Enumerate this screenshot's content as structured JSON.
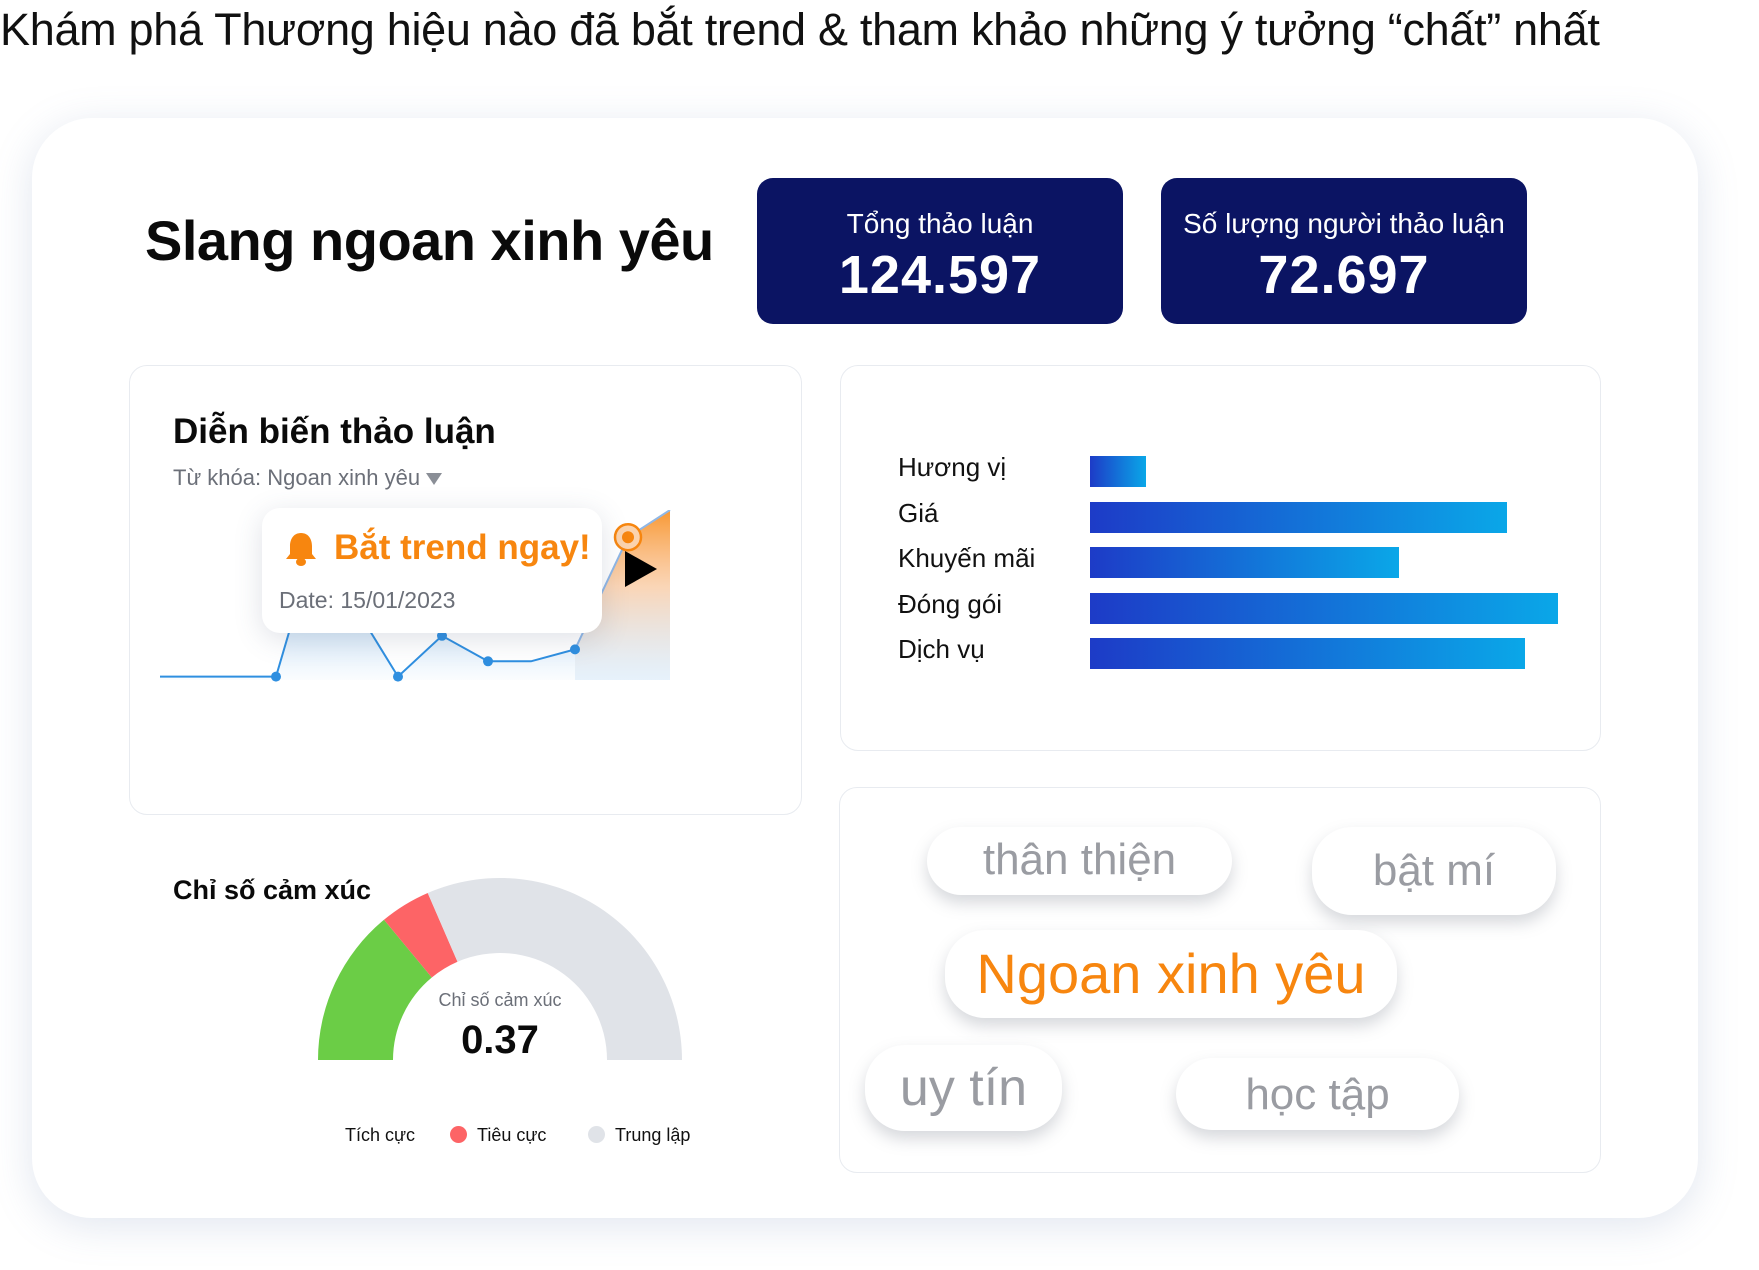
{
  "headline": "Khám phá Thương hiệu nào đã bắt trend & tham khảo những ý tưởng “chất” nhất",
  "slang_title": "Slang ngoan xinh yêu",
  "stats": [
    {
      "label": "Tổng thảo luận",
      "value": "124.597"
    },
    {
      "label": "Số lượng người thảo luận",
      "value": "72.697"
    }
  ],
  "discussion": {
    "title": "Diễn biến thảo luận",
    "keyword_label": "Từ khóa: Ngoan xinh yêu",
    "tooltip_title": "Bắt trend ngay!",
    "tooltip_date": "Date: 15/01/2023",
    "bell_icon": "bell-icon",
    "play_icon": "play-icon",
    "line_color": "#2f8fe0",
    "trend_color": "#f7860f"
  },
  "chart_data": [
    {
      "type": "line",
      "title": "Diễn biến thảo luận",
      "xlabel": "",
      "ylabel": "",
      "ylim": [
        0,
        100
      ],
      "points": [
        {
          "x": 0,
          "y": 2
        },
        {
          "x": 1,
          "y": 2
        },
        {
          "x": 2,
          "y": 60
        },
        {
          "x": 3,
          "y": 48
        },
        {
          "x": 4,
          "y": 2
        },
        {
          "x": 5,
          "y": 26
        },
        {
          "x": 6,
          "y": 11
        },
        {
          "x": 7,
          "y": 11
        },
        {
          "x": 8,
          "y": 18
        },
        {
          "x": 9,
          "y": 84
        },
        {
          "x": 10,
          "y": 100
        }
      ],
      "highlight_x": 9
    },
    {
      "type": "bar",
      "orientation": "horizontal",
      "categories": [
        "Hương vị",
        "Giá",
        "Khuyến mãi",
        "Đóng gói",
        "Dịch vụ"
      ],
      "values": [
        12,
        89,
        66,
        100,
        93
      ],
      "xlim": [
        0,
        100
      ]
    },
    {
      "type": "pie",
      "style": "half-donut",
      "title": "Chỉ số cảm xúc",
      "center_label": "Chỉ số cảm xúc",
      "center_value": "0.37",
      "slices": [
        {
          "name": "Tích cực",
          "value": 28,
          "color": "#6bcd46"
        },
        {
          "name": "Tiêu cực",
          "value": 9,
          "color": "#fd6466"
        },
        {
          "name": "Trung lập",
          "value": 63,
          "color": "#e0e3e8"
        }
      ]
    }
  ],
  "legend": [
    {
      "label": "Tích cực",
      "color": "#6bcd46",
      "dot": false
    },
    {
      "label": "Tiêu cực",
      "color": "#fd6466",
      "dot": true
    },
    {
      "label": "Trung lập",
      "color": "#e0e3e8",
      "dot": true
    }
  ],
  "tags": [
    "thân thiện",
    "bật mí",
    "Ngoan xinh yêu",
    "uy tín",
    "học tập"
  ],
  "colors": {
    "stat_bg": "#0b1463",
    "accent": "#f7860f",
    "bar_start": "#1d3bc7",
    "bar_end": "#0aa7e8"
  }
}
